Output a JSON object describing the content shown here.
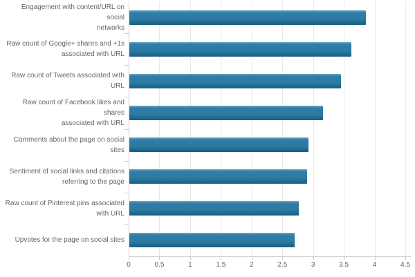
{
  "chart_data": {
    "type": "bar",
    "orientation": "horizontal",
    "title": "",
    "xlabel": "",
    "ylabel": "",
    "legend": false,
    "grid": true,
    "xlim": [
      0,
      4.5
    ],
    "x_ticks": [
      0,
      0.5,
      1,
      1.5,
      2,
      2.5,
      3,
      3.5,
      4,
      4.5
    ],
    "x_tick_labels": [
      "0",
      "0.5",
      "1",
      "1.5",
      "2",
      "2.5",
      "3",
      "3.5",
      "4",
      "4.5"
    ],
    "categories": [
      "Engagement with content/URL on social\nnetworks",
      "Raw count of Google+ shares and +1s\nassociated with URL",
      "Raw count of Tweets associated with URL",
      "Raw count of Facebook likes and shares\nassociated with URL",
      "Comments about the page on social sites",
      "Sentiment of social links and citations\nreferring to the page",
      "Raw count of Pinterest pins associated\nwith URL",
      "Upvotes for the page on social sites"
    ],
    "values": [
      3.86,
      3.62,
      3.45,
      3.16,
      2.92,
      2.9,
      2.77,
      2.7
    ],
    "colors": {
      "bar_gradient_top": "#6aa7c4",
      "bar_main": "#2f7ea7",
      "bar_main_low": "#2c7aa3",
      "bar_gradient_bottom": "#175c81",
      "gridline": "#eae7e8",
      "axis_line": "#d3d0d1",
      "tick": "#cac7c8",
      "label_text": "#646464",
      "background": "#ffffff"
    }
  }
}
